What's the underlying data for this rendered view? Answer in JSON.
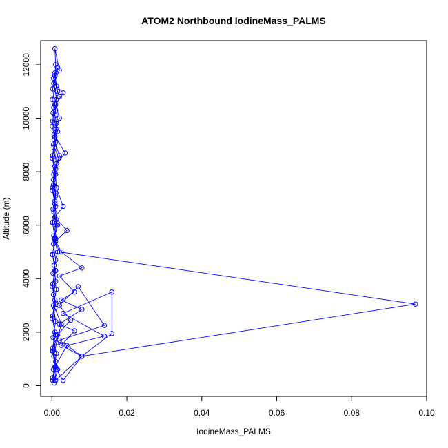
{
  "chart_data": {
    "type": "line",
    "title": "ATOM2 Northbound IodineMass_PALMS",
    "xlabel": "IodineMass_PALMS",
    "ylabel": "Altitude (m)",
    "xlim": [
      -0.003,
      0.1
    ],
    "ylim": [
      -400,
      12900
    ],
    "x_ticks": [
      0.0,
      0.02,
      0.04,
      0.06,
      0.08,
      0.1
    ],
    "x_tick_labels": [
      "0.00",
      "0.02",
      "0.04",
      "0.06",
      "0.08",
      "0.10"
    ],
    "y_ticks": [
      0,
      2000,
      4000,
      6000,
      8000,
      10000,
      12000
    ],
    "y_tick_labels": [
      "0",
      "2000",
      "4000",
      "6000",
      "8000",
      "10000",
      "12000"
    ],
    "grid": false,
    "legend": "none",
    "marker": "open-circle",
    "color": "#0000ff",
    "series": [
      {
        "points": [
          [
            0.0008,
            200
          ],
          [
            0.0015,
            600
          ],
          [
            0.0005,
            1100
          ],
          [
            0.0012,
            1600
          ],
          [
            0.0025,
            2300
          ],
          [
            0.0008,
            2900
          ],
          [
            0.0004,
            3400
          ],
          [
            0.001,
            3900
          ],
          [
            0.0006,
            4500
          ],
          [
            0.0015,
            5000
          ],
          [
            0.0005,
            5600
          ],
          [
            0.0012,
            6200
          ],
          [
            0.0008,
            6900
          ],
          [
            0.0004,
            7500
          ],
          [
            0.001,
            8100
          ],
          [
            0.002,
            8600
          ],
          [
            0.0006,
            9200
          ],
          [
            0.0012,
            9800
          ],
          [
            0.0005,
            10400
          ],
          [
            0.0015,
            11000
          ],
          [
            0.0008,
            11600
          ],
          [
            0.001,
            12000
          ],
          [
            0.0008,
            12600
          ],
          [
            0.002,
            11800
          ],
          [
            0.0005,
            11300
          ],
          [
            0.003,
            10950
          ],
          [
            0.001,
            10500
          ],
          [
            0.002,
            10000
          ],
          [
            0.0006,
            9400
          ],
          [
            0.0035,
            8700
          ],
          [
            0.0008,
            8200
          ],
          [
            0.0012,
            7400
          ],
          [
            0.003,
            6700
          ],
          [
            0.0008,
            6300
          ],
          [
            0.004,
            5800
          ],
          [
            0.001,
            5400
          ],
          [
            0.0025,
            5000
          ],
          [
            0.008,
            4400
          ],
          [
            0.002,
            4100
          ],
          [
            0.006,
            3500
          ],
          [
            0.0025,
            3200
          ],
          [
            0.008,
            2850
          ],
          [
            0.002,
            2300
          ],
          [
            0.006,
            2050
          ],
          [
            0.0025,
            1500
          ],
          [
            0.008,
            1100
          ],
          [
            0.003,
            200
          ],
          [
            0.0012,
            600
          ],
          [
            0.0003,
            1300
          ],
          [
            0.0015,
            1900
          ],
          [
            0.005,
            2450
          ],
          [
            0.002,
            3000
          ],
          [
            0.007,
            3700
          ],
          [
            0.014,
            2250
          ],
          [
            0.002,
            1700
          ],
          [
            0.008,
            1100
          ],
          [
            0.001,
            200
          ],
          [
            0.0008,
            700
          ],
          [
            0.004,
            1500
          ],
          [
            0.014,
            1850
          ],
          [
            0.003,
            2700
          ],
          [
            0.016,
            3500
          ],
          [
            0.016,
            1950
          ],
          [
            0.008,
            1100
          ],
          [
            0.097,
            3050
          ],
          [
            0.002,
            5000
          ],
          [
            0.0006,
            5500
          ],
          [
            0.0015,
            6000
          ],
          [
            0.0005,
            6500
          ],
          [
            0.001,
            7100
          ],
          [
            0.0004,
            7700
          ],
          [
            0.0012,
            8300
          ],
          [
            0.0006,
            8900
          ],
          [
            0.0015,
            9500
          ],
          [
            0.0008,
            10100
          ],
          [
            0.0012,
            10700
          ],
          [
            0.0006,
            11300
          ],
          [
            0.0015,
            11900
          ],
          [
            0.0004,
            11500
          ],
          [
            0.002,
            10800
          ],
          [
            0.0003,
            10200
          ],
          [
            0.0012,
            9600
          ],
          [
            0.0004,
            9000
          ],
          [
            0.0018,
            8500
          ],
          [
            0.0005,
            7900
          ],
          [
            0.001,
            7200
          ],
          [
            0.0003,
            6600
          ],
          [
            0.0012,
            6000
          ],
          [
            0.0004,
            5300
          ],
          [
            0.001,
            4700
          ],
          [
            0.0003,
            4200
          ],
          [
            0.0012,
            3600
          ],
          [
            0.0004,
            3000
          ],
          [
            0.001,
            2400
          ],
          [
            0.0003,
            1800
          ],
          [
            0.0012,
            1200
          ],
          [
            0.0004,
            600
          ],
          [
            0.0006,
            100
          ],
          [
            0.0002,
            300
          ],
          [
            0.001,
            900
          ],
          [
            0.0002,
            1400
          ],
          [
            0.0008,
            2000
          ],
          [
            0.0002,
            2600
          ],
          [
            0.0008,
            3200
          ],
          [
            0.0002,
            3800
          ],
          [
            0.0008,
            4300
          ],
          [
            0.0002,
            4900
          ],
          [
            0.0008,
            5500
          ],
          [
            0.0002,
            6100
          ],
          [
            0.0008,
            6800
          ],
          [
            0.0002,
            7400
          ],
          [
            0.0008,
            8000
          ],
          [
            0.0002,
            8600
          ],
          [
            0.0008,
            9300
          ],
          [
            0.0002,
            9900
          ],
          [
            0.0008,
            10500
          ],
          [
            0.0002,
            11100
          ],
          [
            0.0008,
            11700
          ],
          [
            0.0012,
            11200
          ],
          [
            0.0001,
            10700
          ],
          [
            0.001,
            10300
          ],
          [
            0.0001,
            9700
          ],
          [
            0.001,
            9100
          ],
          [
            0.0001,
            8500
          ],
          [
            0.001,
            7900
          ],
          [
            0.0001,
            7300
          ],
          [
            0.001,
            6700
          ],
          [
            0.0001,
            6100
          ],
          [
            0.001,
            5500
          ],
          [
            0.0001,
            4900
          ],
          [
            0.001,
            4300
          ],
          [
            0.0001,
            3700
          ],
          [
            0.001,
            3100
          ],
          [
            0.0001,
            2500
          ],
          [
            0.001,
            1900
          ],
          [
            0.0001,
            1300
          ],
          [
            0.001,
            700
          ],
          [
            0.0002,
            200
          ]
        ]
      }
    ]
  }
}
